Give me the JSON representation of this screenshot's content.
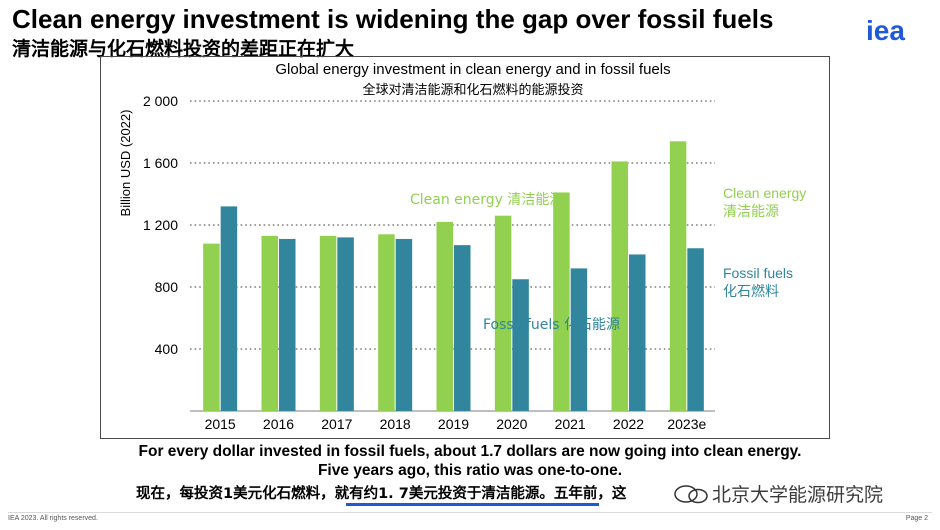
{
  "header": {
    "title_en": "Clean energy investment is widening the gap over fossil fuels",
    "title_zh": "清洁能源与化石燃料投资的差距正在扩大",
    "logo_text": "iea"
  },
  "colors": {
    "clean": "#92d050",
    "fossil": "#31859c",
    "logo": "#1f59d6",
    "grid": "#7f7f7f"
  },
  "chart_data": {
    "type": "bar",
    "title": "Global energy investment in clean energy and in fossil fuels",
    "subtitle": "全球对清洁能源和化石燃料的能源投资",
    "ylabel": "Billion USD (2022)",
    "ylim": [
      0,
      2000
    ],
    "ytick_values": [
      400,
      800,
      1200,
      1600,
      2000
    ],
    "ytick_labels": [
      "400",
      "800",
      "1 200",
      "1 600",
      "2 000"
    ],
    "categories": [
      "2015",
      "2016",
      "2017",
      "2018",
      "2019",
      "2020",
      "2021",
      "2022",
      "2023e"
    ],
    "series": [
      {
        "name": "Clean energy",
        "values": [
          1080,
          1130,
          1130,
          1140,
          1220,
          1260,
          1410,
          1610,
          1740
        ]
      },
      {
        "name": "Fossil fuels",
        "values": [
          1320,
          1110,
          1120,
          1110,
          1070,
          850,
          920,
          1010,
          1050
        ]
      }
    ],
    "annotations": {
      "clean_inline": "Clean energy 清洁能源",
      "fossil_inline": "Fossil fuels 化石能源",
      "legend_clean_en": "Clean energy",
      "legend_clean_zh": "清洁能源",
      "legend_fossil_en": "Fossil fuels",
      "legend_fossil_zh": "化石燃料"
    }
  },
  "message": {
    "line1": "For every dollar invested in fossil fuels, about 1.7 dollars are now going into clean energy.",
    "line2": "Five years ago, this ratio was one-to-one.",
    "line3": "现在，每投资1美元化石燃料，就有约1. 7美元投资于清洁能源。五年前，这"
  },
  "watermark": "北京大学能源研究院",
  "footer": {
    "copyright": "IEA 2023. All rights reserved.",
    "page": "Page 2"
  }
}
